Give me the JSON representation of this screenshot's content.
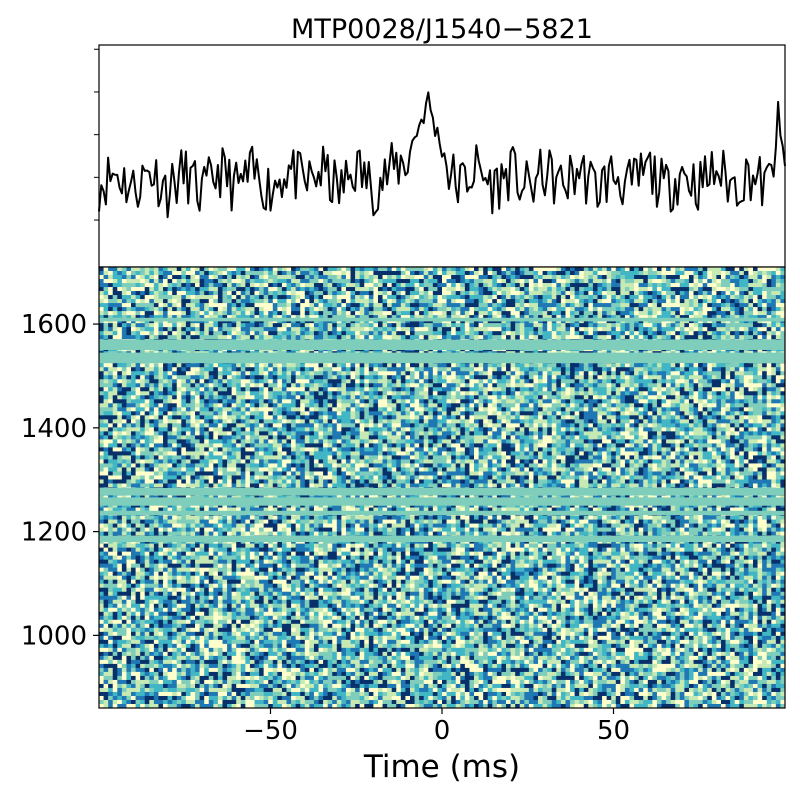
{
  "chart_data": [
    {
      "type": "line",
      "panel": "profile",
      "title": "MTP0028/J1540−5821",
      "xlabel": "",
      "ylabel": "",
      "xlim": [
        -100,
        100
      ],
      "ylim": [
        -4.2,
        6.2
      ],
      "y_ticks_labeled": false,
      "grid": false,
      "color": "#000000",
      "x": [
        -100,
        -95,
        -90,
        -85,
        -80,
        -75,
        -70,
        -65,
        -60,
        -55,
        -50,
        -45,
        -40,
        -35,
        -30,
        -25,
        -20,
        -15,
        -10,
        -8,
        -6,
        -4,
        -2,
        0,
        2,
        5,
        10,
        15,
        20,
        25,
        30,
        35,
        40,
        45,
        50,
        55,
        60,
        65,
        70,
        75,
        80,
        85,
        90,
        95,
        98,
        100
      ],
      "y": [
        -0.5,
        0.4,
        -0.9,
        0.6,
        -1.0,
        0.4,
        -1.4,
        0.6,
        -0.8,
        0.3,
        -0.9,
        0.7,
        -0.6,
        0.5,
        -1.1,
        0.8,
        -0.8,
        0.5,
        1.4,
        3.2,
        4.5,
        6.0,
        3.8,
        2.4,
        0.4,
        -0.6,
        0.7,
        -0.8,
        0.5,
        -1.0,
        0.4,
        -0.7,
        0.6,
        -0.9,
        0.3,
        -0.8,
        0.7,
        -1.0,
        0.4,
        -0.6,
        0.6,
        -0.7,
        0.3,
        -0.9,
        3.8,
        0.2
      ]
    },
    {
      "type": "heatmap",
      "panel": "dynamic-spectrum",
      "xlabel": "Time (ms)",
      "ylabel": "",
      "xlim": [
        -100,
        100
      ],
      "ylim": [
        860,
        1710
      ],
      "x_ticks": [
        -50,
        0,
        50
      ],
      "y_ticks": [
        1000,
        1200,
        1400,
        1600
      ],
      "colormap": [
        "#08306b",
        "#1f78b4",
        "#41b6c4",
        "#7fcdbb",
        "#c7e9b4",
        "#ffffcc"
      ],
      "flagged_color": "#7fcdbb",
      "flagged_bands": [
        [
          1525,
          1545
        ],
        [
          1550,
          1570
        ],
        [
          1605,
          1612
        ],
        [
          1250,
          1266
        ],
        [
          1270,
          1284
        ],
        [
          1232,
          1240
        ],
        [
          1180,
          1192
        ]
      ],
      "pulse_time": -2
    }
  ]
}
